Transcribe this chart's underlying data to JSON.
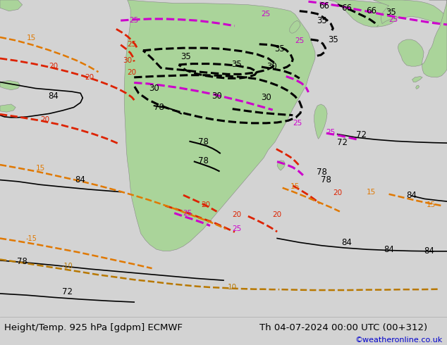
{
  "title_left": "Height/Temp. 925 hPa [gdpm] ECMWF",
  "title_right": "Th 04-07-2024 00:00 UTC (00+312)",
  "credit": "©weatheronline.co.uk",
  "bg_color": "#d3d3d3",
  "land_color": "#aad49a",
  "ocean_color": "#d3d3d3",
  "fig_width": 6.34,
  "fig_height": 4.9,
  "dpi": 100,
  "bottom_bar_color": "#e0e0e0",
  "title_fontsize": 9.5,
  "credit_color": "#0000cc",
  "credit_fontsize": 8
}
